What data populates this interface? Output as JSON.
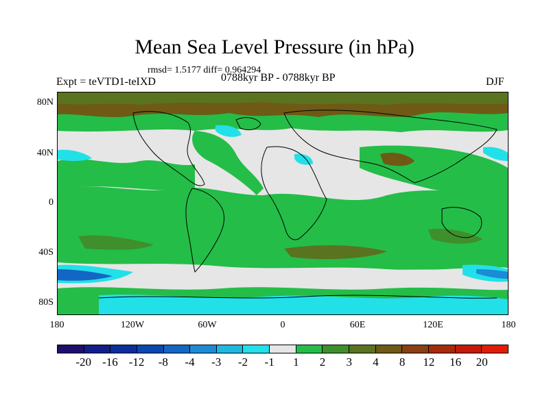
{
  "title": "Mean Sea Level Pressure (in hPa)",
  "stats": "rmsd= 1.5177 diff= 0.964294",
  "experiment": "Expt = teVTD1-teIXD",
  "period": "0788kyr BP - 0788kyr BP",
  "season": "DJF",
  "map": {
    "lat_labels": [
      "80N",
      "40N",
      "0",
      "40S",
      "80S"
    ],
    "lon_labels": [
      "180",
      "120W",
      "60W",
      "0",
      "60E",
      "120E",
      "180"
    ]
  },
  "colorbar": {
    "labels": [
      "-20",
      "-16",
      "-12",
      "-8",
      "-4",
      "-3",
      "-2",
      "-1",
      "1",
      "2",
      "3",
      "4",
      "8",
      "12",
      "16",
      "20"
    ],
    "colors": [
      "#1c0f6e",
      "#131e8c",
      "#0b2e9e",
      "#0b47b0",
      "#1466c4",
      "#1b8bd6",
      "#1fb8e0",
      "#22e0e8",
      "#e6e6e6",
      "#24bd48",
      "#3f8f2c",
      "#597320",
      "#6e5a14",
      "#8a4010",
      "#a82a0c",
      "#c61a08",
      "#e01e08"
    ]
  },
  "palette": {
    "neutral": "#e6e6e6",
    "green": "#24bd48",
    "dark_green": "#3f8f2c",
    "olive": "#597320",
    "brown": "#6e5a14",
    "cyan": "#22e0e8",
    "light_blue": "#1fb8e0",
    "mid_blue": "#1b8bd6",
    "blue": "#1466c4"
  }
}
